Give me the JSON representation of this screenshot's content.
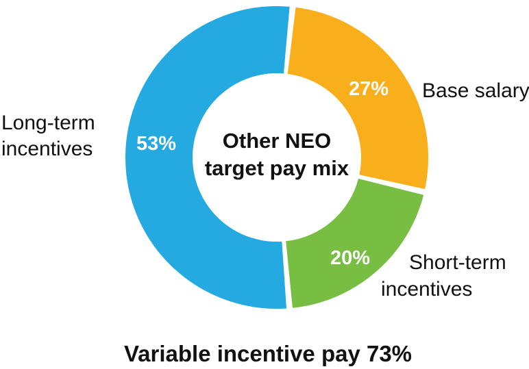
{
  "chart_data": {
    "type": "pie",
    "donut": true,
    "center_title": [
      "Other NEO",
      "target pay mix"
    ],
    "slices": [
      {
        "name": "Base salary",
        "label_lines": [
          "Base salary"
        ],
        "value": 27,
        "value_label": "27%",
        "color": "#F9AE1B"
      },
      {
        "name": "Short-term incentives",
        "label_lines": [
          "Short-term",
          "incentives"
        ],
        "value": 20,
        "value_label": "20%",
        "color": "#78BE43"
      },
      {
        "name": "Long-term incentives",
        "label_lines": [
          "Long-term",
          "incentives"
        ],
        "value": 53,
        "value_label": "53%",
        "color": "#24A9E1"
      }
    ],
    "footer": "Variable incentive pay 73%"
  }
}
